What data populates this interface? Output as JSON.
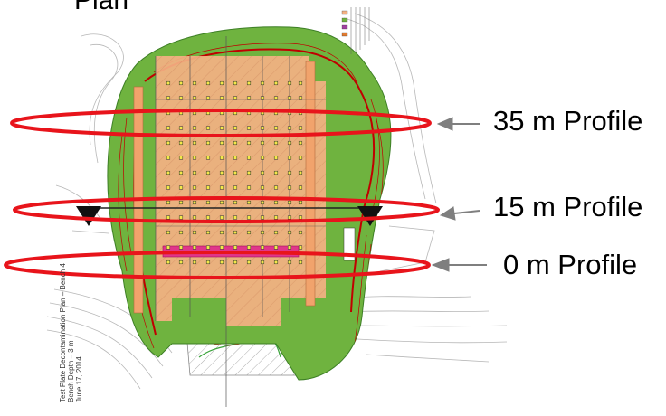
{
  "heading": "Plan",
  "profiles": [
    {
      "label": "35 m Profile"
    },
    {
      "label": "15 m Profile"
    },
    {
      "label": "0 m Profile"
    }
  ],
  "plan_caption": [
    "Test Plate Decontamination Plan – Bench 4",
    "Bench Depth – 3 m",
    "June 17, 2014"
  ],
  "colors": {
    "ellipse": "#e8141b",
    "arrow": "#7f7f7f",
    "vegetation": "#6fb33f",
    "excavation": "#f4b183",
    "contour": "#c00000",
    "banner": "#e0368a"
  },
  "icons": [
    "arrow-left-icon",
    "section-marker-icon"
  ]
}
